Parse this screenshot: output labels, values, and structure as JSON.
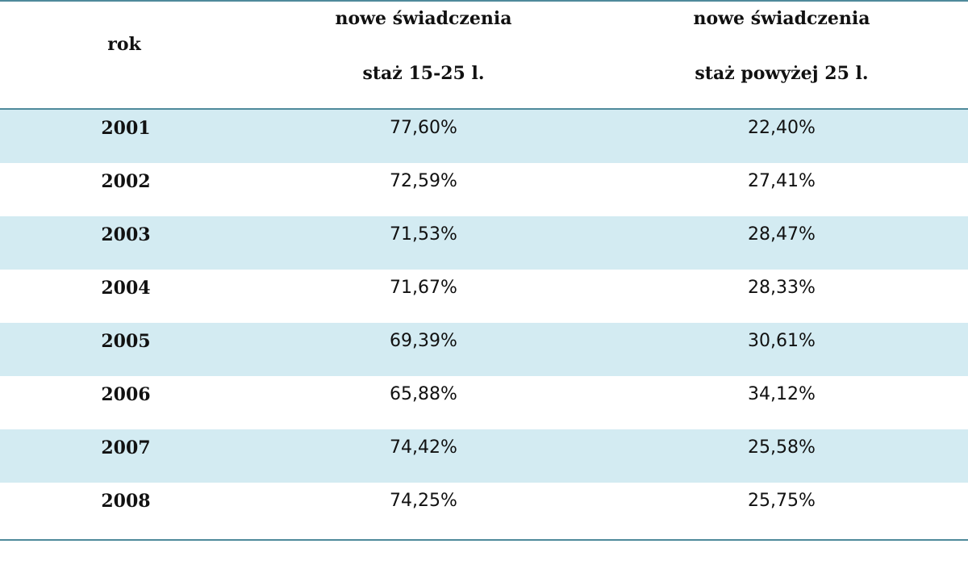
{
  "chart_data": {
    "type": "table",
    "columns": [
      {
        "label": "rok"
      },
      {
        "line1": "nowe świadczenia",
        "line2": "staż 15-25 l."
      },
      {
        "line1": "nowe świadczenia",
        "line2": "staż powyżej 25 l."
      }
    ],
    "rows": [
      {
        "year": "2001",
        "a": "77,60%",
        "b": "22,40%"
      },
      {
        "year": "2002",
        "a": "72,59%",
        "b": "27,41%"
      },
      {
        "year": "2003",
        "a": "71,53%",
        "b": "28,47%"
      },
      {
        "year": "2004",
        "a": "71,67%",
        "b": "28,33%"
      },
      {
        "year": "2005",
        "a": "69,39%",
        "b": "30,61%"
      },
      {
        "year": "2006",
        "a": "65,88%",
        "b": "34,12%"
      },
      {
        "year": "2007",
        "a": "74,42%",
        "b": "25,58%"
      },
      {
        "year": "2008",
        "a": "74,25%",
        "b": "25,75%"
      }
    ],
    "colors": {
      "shaded_row": "#d3ebf2",
      "rule": "#4f8a9b"
    }
  }
}
